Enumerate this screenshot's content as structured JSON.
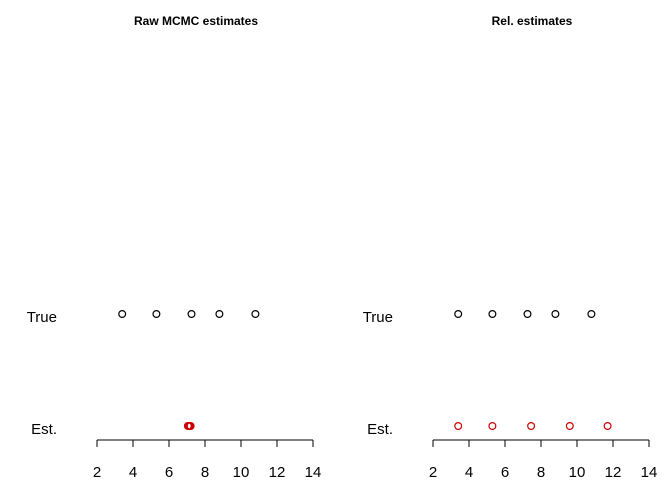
{
  "chart_data": [
    {
      "type": "scatter",
      "title": "Raw MCMC estimates",
      "xlabel": "",
      "ylabel": "",
      "xlim": [
        2,
        14
      ],
      "ticks": [
        2,
        4,
        6,
        8,
        10,
        12,
        14
      ],
      "grid": false,
      "categories": [
        "True",
        "Est."
      ],
      "series": [
        {
          "row": "True",
          "color": "#000000",
          "x": [
            3.4,
            5.3,
            7.25,
            8.8,
            10.8
          ]
        },
        {
          "row": "Est.",
          "color": "#cc0000",
          "x": [
            7.05,
            7.1,
            7.15,
            7.2,
            7.12
          ]
        }
      ]
    },
    {
      "type": "scatter",
      "title": "Rel. estimates",
      "xlabel": "",
      "ylabel": "",
      "xlim": [
        2,
        14
      ],
      "ticks": [
        2,
        4,
        6,
        8,
        10,
        12,
        14
      ],
      "grid": false,
      "categories": [
        "True",
        "Est."
      ],
      "series": [
        {
          "row": "True",
          "color": "#000000",
          "x": [
            3.4,
            5.3,
            7.25,
            8.8,
            10.8
          ]
        },
        {
          "row": "Est.",
          "color": "#cc0000",
          "x": [
            3.4,
            5.3,
            7.45,
            9.6,
            11.7
          ]
        }
      ]
    }
  ]
}
